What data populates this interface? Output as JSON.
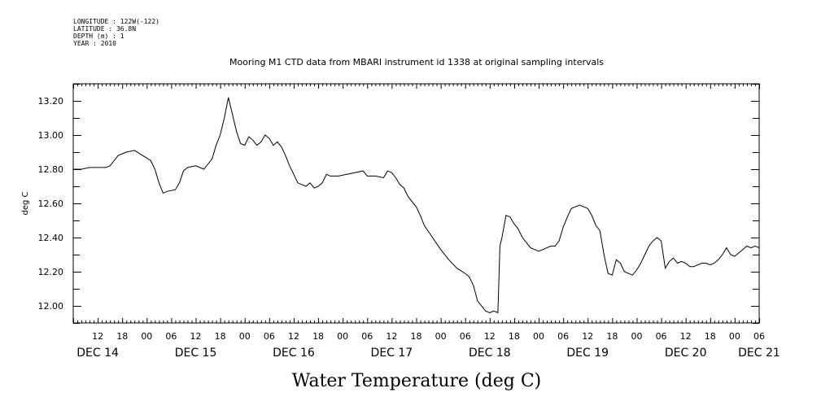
{
  "metadata": [
    "LONGITUDE : 122W(-122)",
    "LATITUDE : 36.8N",
    "DEPTH (m) : 1",
    "YEAR : 2010"
  ],
  "chart_data": {
    "type": "line",
    "title": "Mooring M1 CTD data from MBARI instrument id 1338 at original sampling intervals",
    "ylabel": "deg C",
    "xlabel": "Water Temperature (deg C)",
    "ylim": [
      11.9,
      13.3
    ],
    "xlim": [
      0,
      168
    ],
    "x_unit": "hours since DEC 14 06:00",
    "y_ticks": [
      {
        "value": 12.0,
        "label": "12.00"
      },
      {
        "value": 12.2,
        "label": "12.20"
      },
      {
        "value": 12.4,
        "label": "12.40"
      },
      {
        "value": 12.6,
        "label": "12.60"
      },
      {
        "value": 12.8,
        "label": "12.80"
      },
      {
        "value": 13.0,
        "label": "13.00"
      },
      {
        "value": 13.2,
        "label": "13.20"
      }
    ],
    "hour_labels": [
      "12",
      "18",
      "00",
      "06",
      "12",
      "18",
      "00",
      "06",
      "12",
      "18",
      "00",
      "06",
      "12",
      "18",
      "00",
      "06",
      "12",
      "18",
      "00",
      "06",
      "12",
      "18",
      "00",
      "06",
      "12",
      "18",
      "00",
      "06"
    ],
    "date_labels": [
      {
        "label": "DEC 14",
        "hour": 6
      },
      {
        "label": "DEC 15",
        "hour": 30
      },
      {
        "label": "DEC 16",
        "hour": 54
      },
      {
        "label": "DEC 17",
        "hour": 78
      },
      {
        "label": "DEC 18",
        "hour": 102
      },
      {
        "label": "DEC 19",
        "hour": 126
      },
      {
        "label": "DEC 20",
        "hour": 150
      },
      {
        "label": "DEC 21",
        "hour": 168
      }
    ],
    "series": [
      {
        "values": [
          [
            0,
            12.8
          ],
          [
            2,
            12.8
          ],
          [
            4,
            12.81
          ],
          [
            6,
            12.81
          ],
          [
            8,
            12.81
          ],
          [
            9,
            12.82
          ],
          [
            10,
            12.85
          ],
          [
            11,
            12.88
          ],
          [
            13,
            12.9
          ],
          [
            15,
            12.91
          ],
          [
            17,
            12.88
          ],
          [
            19,
            12.85
          ],
          [
            20,
            12.8
          ],
          [
            21,
            12.72
          ],
          [
            22,
            12.66
          ],
          [
            23,
            12.67
          ],
          [
            25,
            12.68
          ],
          [
            26,
            12.72
          ],
          [
            27,
            12.79
          ],
          [
            28,
            12.81
          ],
          [
            30,
            12.82
          ],
          [
            32,
            12.8
          ],
          [
            34,
            12.86
          ],
          [
            35,
            12.94
          ],
          [
            36,
            13.0
          ],
          [
            37,
            13.1
          ],
          [
            38,
            13.22
          ],
          [
            39,
            13.12
          ],
          [
            40,
            13.02
          ],
          [
            41,
            12.95
          ],
          [
            42,
            12.94
          ],
          [
            43,
            12.99
          ],
          [
            44,
            12.97
          ],
          [
            45,
            12.94
          ],
          [
            46,
            12.96
          ],
          [
            47,
            13.0
          ],
          [
            48,
            12.98
          ],
          [
            49,
            12.94
          ],
          [
            50,
            12.96
          ],
          [
            51,
            12.93
          ],
          [
            52,
            12.88
          ],
          [
            53,
            12.82
          ],
          [
            54,
            12.77
          ],
          [
            55,
            12.72
          ],
          [
            56,
            12.71
          ],
          [
            57,
            12.7
          ],
          [
            58,
            12.72
          ],
          [
            59,
            12.69
          ],
          [
            60,
            12.7
          ],
          [
            61,
            12.72
          ],
          [
            62,
            12.77
          ],
          [
            63,
            12.76
          ],
          [
            65,
            12.76
          ],
          [
            67,
            12.77
          ],
          [
            69,
            12.78
          ],
          [
            71,
            12.79
          ],
          [
            72,
            12.76
          ],
          [
            74,
            12.76
          ],
          [
            76,
            12.75
          ],
          [
            77,
            12.79
          ],
          [
            78,
            12.78
          ],
          [
            79,
            12.75
          ],
          [
            80,
            12.71
          ],
          [
            81,
            12.69
          ],
          [
            82,
            12.64
          ],
          [
            84,
            12.58
          ],
          [
            85,
            12.53
          ],
          [
            86,
            12.47
          ],
          [
            88,
            12.4
          ],
          [
            90,
            12.33
          ],
          [
            92,
            12.27
          ],
          [
            94,
            12.22
          ],
          [
            96,
            12.19
          ],
          [
            97,
            12.17
          ],
          [
            98,
            12.12
          ],
          [
            99,
            12.03
          ],
          [
            100,
            12.0
          ],
          [
            101,
            11.97
          ],
          [
            102,
            11.96
          ],
          [
            103,
            11.97
          ],
          [
            104,
            11.96
          ],
          [
            104.5,
            12.35
          ],
          [
            105,
            12.4
          ],
          [
            106,
            12.53
          ],
          [
            107,
            12.52
          ],
          [
            108,
            12.48
          ],
          [
            109,
            12.45
          ],
          [
            110,
            12.4
          ],
          [
            111,
            12.37
          ],
          [
            112,
            12.34
          ],
          [
            113,
            12.33
          ],
          [
            114,
            12.32
          ],
          [
            115,
            12.33
          ],
          [
            116,
            12.34
          ],
          [
            117,
            12.35
          ],
          [
            118,
            12.35
          ],
          [
            119,
            12.38
          ],
          [
            120,
            12.46
          ],
          [
            121,
            12.52
          ],
          [
            122,
            12.57
          ],
          [
            123,
            12.58
          ],
          [
            124,
            12.59
          ],
          [
            125,
            12.58
          ],
          [
            126,
            12.57
          ],
          [
            127,
            12.53
          ],
          [
            128,
            12.47
          ],
          [
            129,
            12.44
          ],
          [
            130,
            12.3
          ],
          [
            131,
            12.19
          ],
          [
            132,
            12.18
          ],
          [
            133,
            12.27
          ],
          [
            134,
            12.25
          ],
          [
            135,
            12.2
          ],
          [
            136,
            12.19
          ],
          [
            137,
            12.18
          ],
          [
            138,
            12.21
          ],
          [
            139,
            12.25
          ],
          [
            140,
            12.3
          ],
          [
            141,
            12.35
          ],
          [
            142,
            12.38
          ],
          [
            143,
            12.4
          ],
          [
            144,
            12.38
          ],
          [
            145,
            12.22
          ],
          [
            146,
            12.26
          ],
          [
            147,
            12.28
          ],
          [
            148,
            12.25
          ],
          [
            149,
            12.26
          ],
          [
            150,
            12.25
          ],
          [
            151,
            12.23
          ],
          [
            152,
            12.23
          ],
          [
            153,
            12.24
          ],
          [
            154,
            12.25
          ],
          [
            155,
            12.25
          ],
          [
            156,
            12.24
          ],
          [
            157,
            12.25
          ],
          [
            158,
            12.27
          ],
          [
            159,
            12.3
          ],
          [
            160,
            12.34
          ],
          [
            161,
            12.3
          ],
          [
            162,
            12.29
          ],
          [
            163,
            12.31
          ],
          [
            164,
            12.33
          ],
          [
            165,
            12.35
          ],
          [
            166,
            12.34
          ],
          [
            167,
            12.35
          ],
          [
            168,
            12.34
          ]
        ]
      }
    ],
    "grid": false
  }
}
